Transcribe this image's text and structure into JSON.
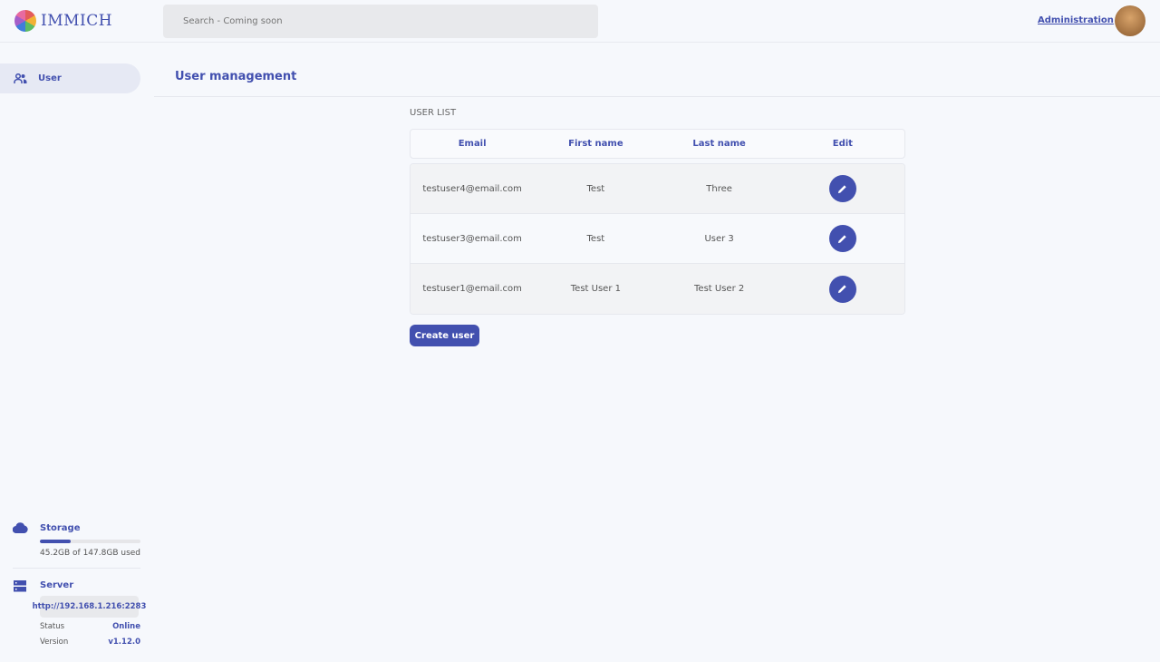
{
  "header": {
    "logo_text": "IMMICH",
    "search_placeholder": "Search - Coming soon",
    "admin_link": "Administration"
  },
  "sidebar": {
    "items": [
      {
        "label": "User",
        "icon": "users-icon"
      }
    ],
    "storage": {
      "label": "Storage",
      "text": "45.2GB of 147.8GB used",
      "used_fraction": 0.306
    },
    "server": {
      "label": "Server",
      "url": "http://192.168.1.216:2283",
      "status_label": "Status",
      "status_value": "Online",
      "version_label": "Version",
      "version_value": "v1.12.0"
    }
  },
  "main": {
    "title": "User management",
    "list_label": "USER LIST",
    "columns": [
      "Email",
      "First name",
      "Last name",
      "Edit"
    ],
    "rows": [
      {
        "email": "testuser4@email.com",
        "first": "Test",
        "last": "Three"
      },
      {
        "email": "testuser3@email.com",
        "first": "Test",
        "last": "User 3"
      },
      {
        "email": "testuser1@email.com",
        "first": "Test User 1",
        "last": "Test User 2"
      }
    ],
    "create_label": "Create user"
  },
  "colors": {
    "accent": "#4250af",
    "background": "#f6f8fc"
  }
}
